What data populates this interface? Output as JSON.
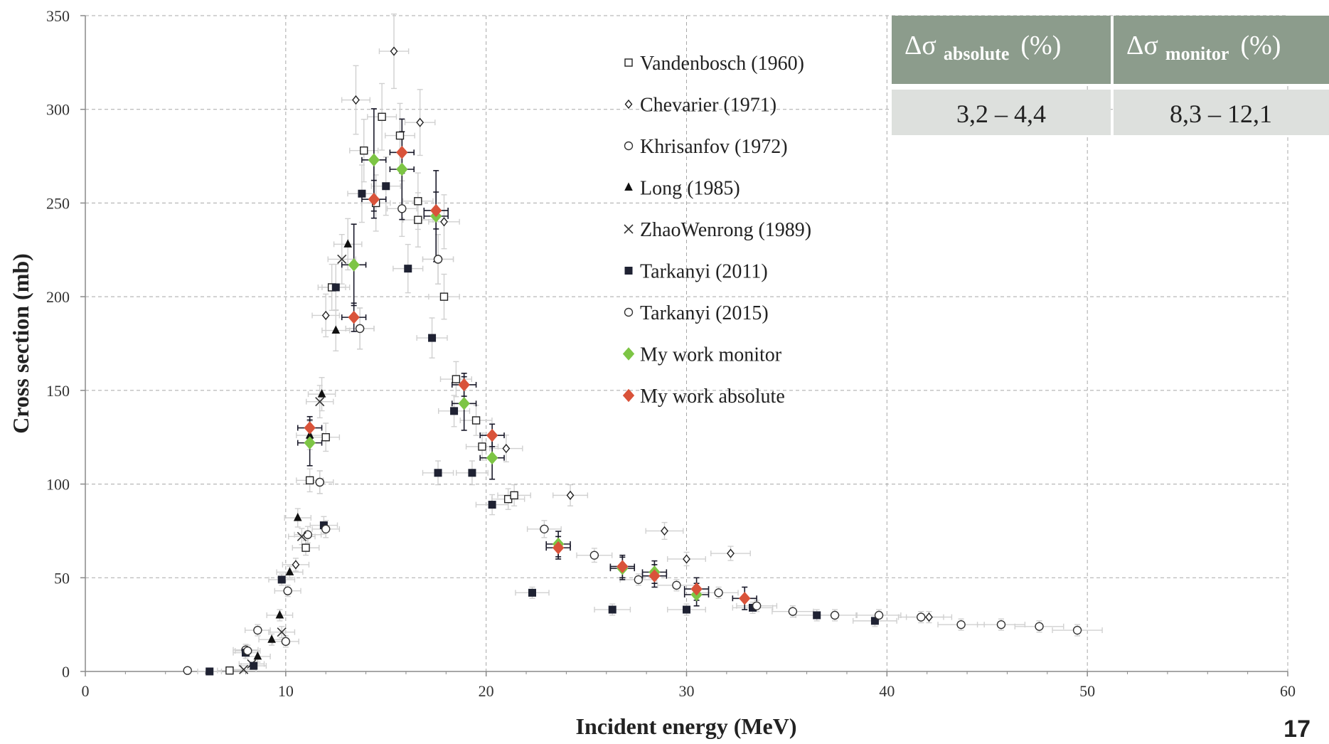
{
  "page_number": "17",
  "colors": {
    "grid": "#a8a8a8",
    "axis": "#8a8a8a",
    "errbar_literature": "#d0d0d0",
    "errbar_mywork": "#1a1a2a",
    "marker_dark": "#1f2233",
    "monitor": "#7dc545",
    "absolute": "#d9533a",
    "table_header_bg": "#8c9c8c",
    "table_cell_bg": "#dde0dd"
  },
  "uncertainty_table": {
    "headers": [
      {
        "symbol": "Δσ",
        "sub": "absolute",
        "unit": "(%)"
      },
      {
        "symbol": "Δσ",
        "sub": "monitor",
        "unit": "(%)"
      }
    ],
    "values": [
      "3,2 – 4,4",
      "8,3 – 12,1"
    ]
  },
  "chart_data": {
    "type": "scatter",
    "title": "",
    "xlabel": "Incident energy (MeV)",
    "ylabel": "Cross section (mb)",
    "xlim": [
      0,
      60
    ],
    "ylim": [
      0,
      350
    ],
    "xticks": [
      0,
      10,
      20,
      30,
      40,
      50,
      60
    ],
    "yticks": [
      0,
      50,
      100,
      150,
      200,
      250,
      300,
      350
    ],
    "grid": true,
    "legend_position": "top-center",
    "series": [
      {
        "name": "Vandenbosch (1960)",
        "marker": "square-open",
        "points": [
          [
            7.2,
            0.5
          ],
          [
            11.2,
            102
          ],
          [
            11.0,
            66
          ],
          [
            12.0,
            125
          ],
          [
            12.3,
            205
          ],
          [
            13.9,
            278
          ],
          [
            14.5,
            250
          ],
          [
            14.8,
            296
          ],
          [
            15.7,
            286
          ],
          [
            16.6,
            251
          ],
          [
            16.6,
            241
          ],
          [
            17.9,
            200
          ],
          [
            18.5,
            156
          ],
          [
            19.5,
            134
          ],
          [
            19.8,
            120
          ],
          [
            21.1,
            92
          ],
          [
            21.4,
            94
          ]
        ]
      },
      {
        "name": "Chevarier (1971)",
        "marker": "diamond-open",
        "points": [
          [
            10.5,
            57
          ],
          [
            12.0,
            190
          ],
          [
            13.5,
            305
          ],
          [
            15.4,
            331
          ],
          [
            16.7,
            293
          ],
          [
            17.9,
            240
          ],
          [
            21.0,
            119
          ],
          [
            24.2,
            94
          ],
          [
            28.9,
            75
          ],
          [
            30.0,
            60
          ],
          [
            32.2,
            63
          ],
          [
            42.1,
            29
          ]
        ]
      },
      {
        "name": "Khrisanfov (1972)",
        "marker": "circle-open",
        "points": [
          [
            8.0,
            11.5
          ],
          [
            8.6,
            22
          ],
          [
            10.1,
            43
          ],
          [
            11.1,
            73
          ],
          [
            11.7,
            101
          ],
          [
            13.7,
            183
          ],
          [
            17.6,
            220
          ]
        ]
      },
      {
        "name": "Long (1985)",
        "marker": "triangle-filled",
        "points": [
          [
            8.6,
            8
          ],
          [
            9.3,
            17
          ],
          [
            9.7,
            30
          ],
          [
            10.2,
            53
          ],
          [
            10.6,
            82
          ],
          [
            12.5,
            182
          ],
          [
            13.1,
            228
          ],
          [
            11.8,
            148
          ],
          [
            11.2,
            126
          ]
        ]
      },
      {
        "name": "ZhaoWenrong (1989)",
        "marker": "cross",
        "points": [
          [
            7.9,
            1
          ],
          [
            8.3,
            4
          ],
          [
            9.8,
            21
          ],
          [
            10.8,
            72
          ],
          [
            11.7,
            144
          ],
          [
            12.8,
            220
          ]
        ]
      },
      {
        "name": "Tarkanyi (2011)",
        "marker": "square-filled",
        "points": [
          [
            6.2,
            0
          ],
          [
            8.0,
            10
          ],
          [
            8.4,
            3
          ],
          [
            9.8,
            49
          ],
          [
            11.9,
            78
          ],
          [
            12.5,
            205
          ],
          [
            13.8,
            255
          ],
          [
            15.0,
            259
          ],
          [
            16.1,
            215
          ],
          [
            17.3,
            178
          ],
          [
            17.6,
            106
          ],
          [
            18.4,
            139
          ],
          [
            19.3,
            106
          ],
          [
            20.3,
            89
          ],
          [
            22.3,
            42
          ],
          [
            26.3,
            33
          ],
          [
            30.0,
            33
          ],
          [
            33.3,
            34
          ],
          [
            36.5,
            30
          ],
          [
            39.4,
            27
          ]
        ]
      },
      {
        "name": "Tarkanyi (2015)",
        "marker": "circle-open",
        "points": [
          [
            5.1,
            0.5
          ],
          [
            8.1,
            11
          ],
          [
            10.0,
            16
          ],
          [
            11.7,
            101
          ],
          [
            12.0,
            76
          ],
          [
            13.7,
            183
          ],
          [
            15.8,
            247
          ],
          [
            17.6,
            220
          ],
          [
            22.9,
            76
          ],
          [
            25.4,
            62
          ],
          [
            27.6,
            49
          ],
          [
            29.5,
            46
          ],
          [
            31.6,
            42
          ],
          [
            33.5,
            35
          ],
          [
            35.3,
            32
          ],
          [
            37.4,
            30
          ],
          [
            39.6,
            30
          ],
          [
            41.7,
            29
          ],
          [
            43.7,
            25
          ],
          [
            45.7,
            25
          ],
          [
            47.6,
            24
          ],
          [
            49.5,
            22
          ]
        ]
      },
      {
        "name": "My work monitor",
        "marker": "diamond-filled",
        "points": [
          [
            11.2,
            122
          ],
          [
            13.4,
            217
          ],
          [
            14.4,
            273
          ],
          [
            15.8,
            268
          ],
          [
            17.5,
            243
          ],
          [
            18.9,
            143
          ],
          [
            20.3,
            114
          ],
          [
            23.6,
            68
          ],
          [
            26.8,
            55
          ],
          [
            28.4,
            53
          ],
          [
            30.5,
            41
          ]
        ]
      },
      {
        "name": "My work absolute",
        "marker": "diamond-filled",
        "points": [
          [
            11.2,
            130
          ],
          [
            13.4,
            189
          ],
          [
            14.4,
            252
          ],
          [
            15.8,
            277
          ],
          [
            17.5,
            246
          ],
          [
            18.9,
            153
          ],
          [
            20.3,
            126
          ],
          [
            23.6,
            66
          ],
          [
            26.8,
            56
          ],
          [
            28.4,
            51
          ],
          [
            30.5,
            44
          ],
          [
            32.9,
            39
          ]
        ]
      }
    ]
  }
}
